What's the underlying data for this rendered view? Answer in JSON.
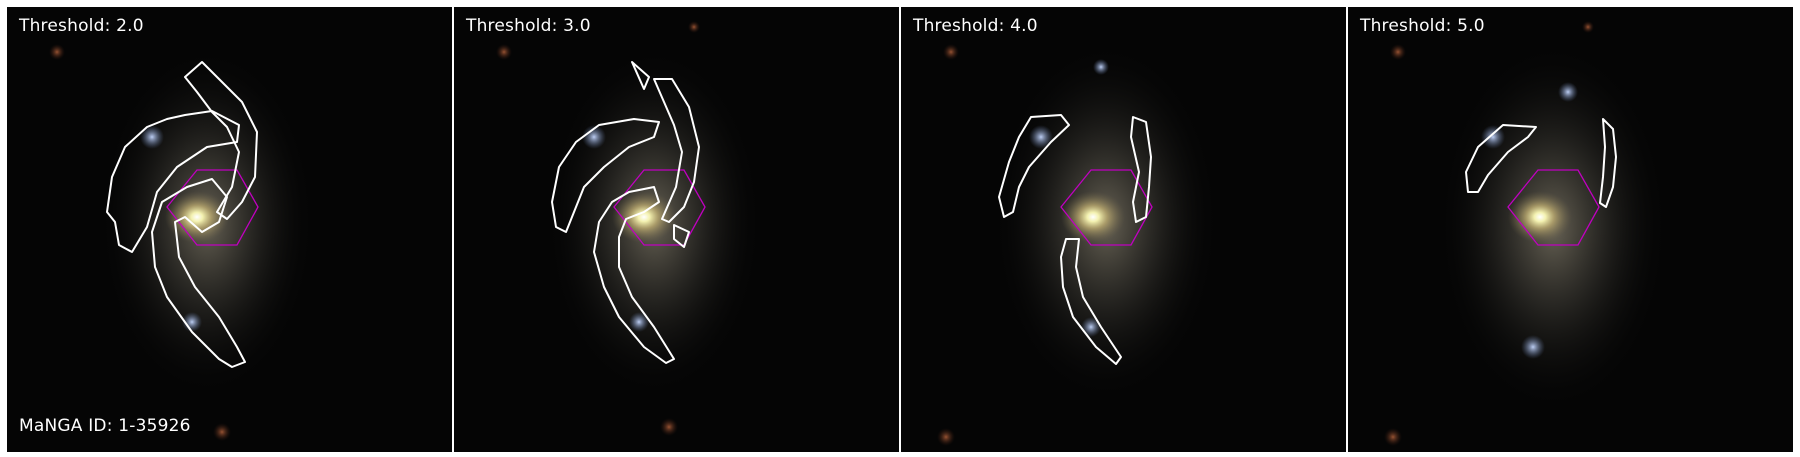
{
  "panels": [
    {
      "threshold_label": "Threshold: 2.0"
    },
    {
      "threshold_label": "Threshold: 3.0"
    },
    {
      "threshold_label": "Threshold: 4.0"
    },
    {
      "threshold_label": "Threshold: 5.0"
    }
  ],
  "manga_id": "MaNGA ID: 1-35926",
  "colors": {
    "contour": "#ffffff",
    "hexagon": "#c000c0",
    "background": "#050505"
  }
}
